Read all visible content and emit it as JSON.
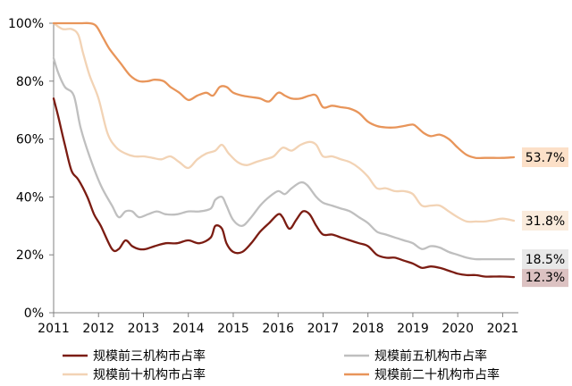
{
  "chart_data": {
    "type": "line",
    "title": "",
    "xlabel": "",
    "ylabel": "",
    "xlim": [
      2011,
      2021.35
    ],
    "ylim": [
      0,
      100
    ],
    "x_ticks": [
      2011,
      2012,
      2013,
      2014,
      2015,
      2016,
      2017,
      2018,
      2019,
      2020,
      2021
    ],
    "x_tick_labels": [
      "2011",
      "2012",
      "2013",
      "2014",
      "2015",
      "2016",
      "2017",
      "2018",
      "2019",
      "2020",
      "2021"
    ],
    "y_ticks": [
      0,
      20,
      40,
      60,
      80,
      100
    ],
    "y_tick_labels": [
      "0%",
      "20%",
      "40%",
      "60%",
      "80%",
      "100%"
    ],
    "grid": false,
    "legend_position": "bottom",
    "series": [
      {
        "name": "规模前三机构市占率",
        "color": "#7b1c12",
        "end_label": "12.3%",
        "end_label_bg": "#dcc2c2",
        "x": [
          2011.0,
          2011.1,
          2011.25,
          2011.4,
          2011.55,
          2011.75,
          2011.9,
          2012.05,
          2012.3,
          2012.45,
          2012.6,
          2012.75,
          2012.9,
          2013.05,
          2013.25,
          2013.5,
          2013.75,
          2014.0,
          2014.25,
          2014.5,
          2014.6,
          2014.75,
          2014.85,
          2015.0,
          2015.2,
          2015.4,
          2015.6,
          2015.8,
          2016.0,
          2016.1,
          2016.25,
          2016.4,
          2016.55,
          2016.7,
          2016.85,
          2017.0,
          2017.2,
          2017.4,
          2017.6,
          2017.8,
          2018.0,
          2018.2,
          2018.4,
          2018.6,
          2018.8,
          2019.0,
          2019.2,
          2019.4,
          2019.6,
          2019.8,
          2020.0,
          2020.2,
          2020.4,
          2020.6,
          2020.8,
          2021.0,
          2021.25
        ],
        "y": [
          74,
          68,
          58,
          49,
          46,
          40,
          34,
          30,
          22,
          22,
          25,
          23,
          22,
          22,
          23,
          24,
          24,
          25,
          24,
          26,
          30,
          29,
          24,
          21,
          21,
          24,
          28,
          31,
          34,
          33,
          29,
          32,
          35,
          34,
          30,
          27,
          27,
          26,
          25,
          24,
          23,
          20,
          19,
          19,
          18,
          17,
          15.5,
          16,
          15.5,
          14.5,
          13.5,
          13,
          13,
          12.5,
          12.5,
          12.5,
          12.3
        ]
      },
      {
        "name": "规模前五机构市占率",
        "color": "#bfbfbf",
        "end_label": "18.5%",
        "end_label_bg": "#e8e8e8",
        "x": [
          2011.0,
          2011.1,
          2011.25,
          2011.45,
          2011.6,
          2011.8,
          2012.05,
          2012.3,
          2012.45,
          2012.6,
          2012.75,
          2012.9,
          2013.1,
          2013.3,
          2013.5,
          2013.75,
          2014.0,
          2014.25,
          2014.5,
          2014.6,
          2014.75,
          2014.85,
          2015.0,
          2015.2,
          2015.4,
          2015.6,
          2015.8,
          2016.0,
          2016.15,
          2016.3,
          2016.5,
          2016.65,
          2016.85,
          2017.0,
          2017.2,
          2017.4,
          2017.6,
          2017.8,
          2018.0,
          2018.2,
          2018.4,
          2018.6,
          2018.8,
          2019.0,
          2019.2,
          2019.4,
          2019.6,
          2019.8,
          2020.0,
          2020.2,
          2020.4,
          2020.6,
          2020.8,
          2021.0,
          2021.25
        ],
        "y": [
          88,
          83,
          78,
          75,
          64,
          54,
          44,
          37,
          33,
          35,
          35,
          33,
          34,
          35,
          34,
          34,
          35,
          35,
          36,
          39,
          40,
          37,
          32,
          30,
          33,
          37,
          40,
          42,
          41,
          43,
          45,
          44,
          40,
          38,
          37,
          36,
          35,
          33,
          31,
          28,
          27,
          26,
          25,
          24,
          22,
          23,
          22.5,
          21,
          20,
          19,
          18.5,
          18.5,
          18.5,
          18.5,
          18.5
        ]
      },
      {
        "name": "规模前十机构市占率",
        "color": "#f2d3b5",
        "end_label": "31.8%",
        "end_label_bg": "#faebdc",
        "x": [
          2011.0,
          2011.2,
          2011.4,
          2011.55,
          2011.65,
          2011.8,
          2012.0,
          2012.2,
          2012.4,
          2012.6,
          2012.8,
          2013.0,
          2013.2,
          2013.4,
          2013.6,
          2013.8,
          2014.0,
          2014.2,
          2014.4,
          2014.6,
          2014.75,
          2014.9,
          2015.1,
          2015.3,
          2015.5,
          2015.7,
          2015.9,
          2016.1,
          2016.3,
          2016.5,
          2016.7,
          2016.85,
          2017.0,
          2017.2,
          2017.4,
          2017.6,
          2017.8,
          2018.0,
          2018.2,
          2018.4,
          2018.6,
          2018.8,
          2019.0,
          2019.2,
          2019.4,
          2019.6,
          2019.8,
          2020.0,
          2020.2,
          2020.4,
          2020.6,
          2020.8,
          2021.0,
          2021.25
        ],
        "y": [
          100,
          98,
          98,
          96,
          90,
          82,
          74,
          62,
          57,
          55,
          54,
          54,
          53.5,
          53,
          54,
          52,
          50,
          53,
          55,
          56,
          58,
          55,
          52,
          51,
          52,
          53,
          54,
          57,
          56,
          58,
          59,
          58,
          54,
          54,
          53,
          52,
          50,
          47,
          43,
          43,
          42,
          42,
          41,
          37,
          37,
          37,
          35,
          33,
          31.5,
          31.5,
          31.5,
          32,
          32.5,
          31.8
        ]
      },
      {
        "name": "规模前二十机构市占率",
        "color": "#e8955a",
        "end_label": "53.7%",
        "end_label_bg": "#fce0c8",
        "x": [
          2011.0,
          2011.3,
          2011.6,
          2011.8,
          2011.95,
          2012.1,
          2012.25,
          2012.5,
          2012.7,
          2012.9,
          2013.1,
          2013.25,
          2013.45,
          2013.6,
          2013.8,
          2014.0,
          2014.2,
          2014.4,
          2014.55,
          2014.7,
          2014.85,
          2015.0,
          2015.2,
          2015.4,
          2015.6,
          2015.8,
          2016.0,
          2016.15,
          2016.3,
          2016.5,
          2016.7,
          2016.85,
          2017.0,
          2017.2,
          2017.4,
          2017.6,
          2017.8,
          2018.0,
          2018.2,
          2018.4,
          2018.6,
          2018.8,
          2019.0,
          2019.1,
          2019.25,
          2019.4,
          2019.6,
          2019.8,
          2020.0,
          2020.2,
          2020.4,
          2020.6,
          2020.8,
          2021.0,
          2021.25
        ],
        "y": [
          100,
          100,
          100,
          100,
          99,
          95,
          91,
          86,
          82,
          80,
          80,
          80.5,
          80,
          78,
          76,
          73.5,
          75,
          76,
          75,
          78,
          78,
          76,
          75,
          74.5,
          74,
          73,
          76,
          75,
          74,
          74,
          75,
          75,
          71,
          71.5,
          71,
          70.5,
          69,
          66,
          64.5,
          64,
          64,
          64.5,
          65,
          64,
          62,
          61,
          61.5,
          60,
          57,
          54.5,
          53.5,
          53.5,
          53.5,
          53.5,
          53.7
        ]
      }
    ]
  }
}
